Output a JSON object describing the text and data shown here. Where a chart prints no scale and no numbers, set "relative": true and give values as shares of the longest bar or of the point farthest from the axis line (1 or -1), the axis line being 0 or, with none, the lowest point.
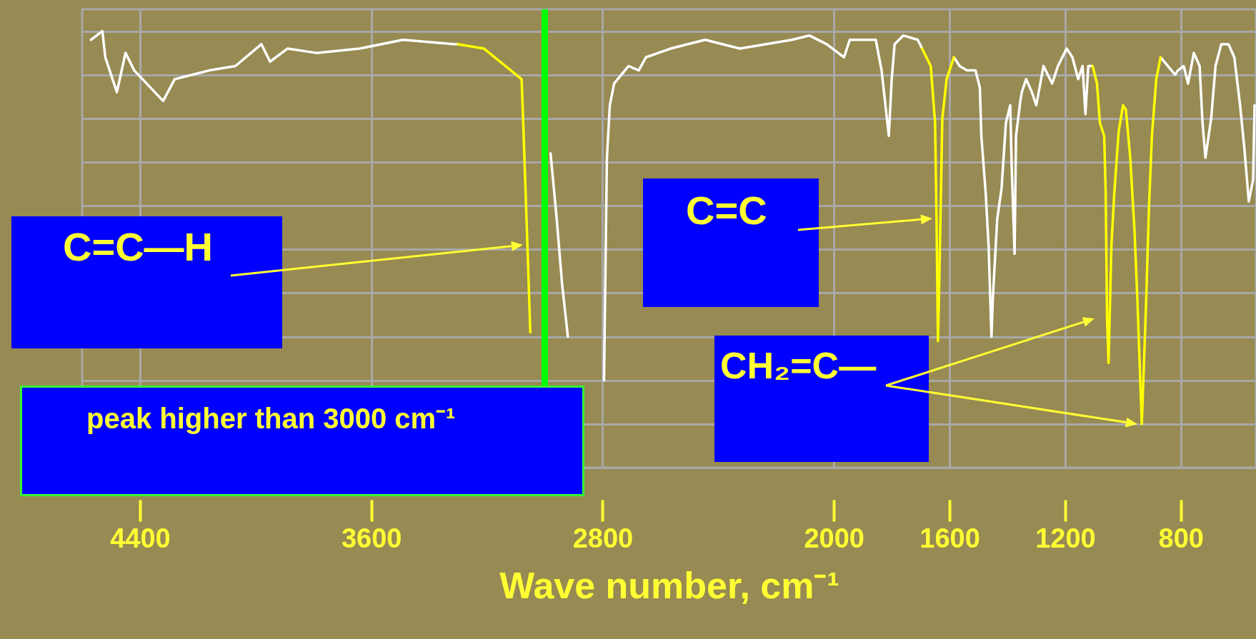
{
  "chart_data": {
    "type": "line",
    "xlabel": "Wave number, cm⁻¹",
    "relative": true,
    "xlim": [
      4600,
      540
    ],
    "xticks": [
      4400,
      3600,
      2800,
      2000,
      1600,
      1200,
      800
    ],
    "grid": true,
    "series": [
      {
        "color": "#ffffff",
        "x": [
          4570,
          4530,
          4520,
          4480,
          4450,
          4420,
          4320,
          4280,
          4220,
          4160,
          4070,
          3980,
          3950,
          3890,
          3790,
          3640,
          3490,
          3310,
          3300,
          3100,
          2980,
          2960,
          2940,
          2920,
          2850,
          2795,
          2785,
          2775,
          2760,
          2710,
          2675,
          2650,
          2565,
          2445,
          2325,
          2145,
          2085,
          2025,
          1965,
          1945,
          1855,
          1835,
          1820,
          1810,
          1800,
          1790,
          1760,
          1710,
          1695,
          1640,
          1585,
          1565,
          1540,
          1510,
          1495,
          1490,
          1475,
          1465,
          1455,
          1450,
          1435,
          1420,
          1405,
          1390,
          1385,
          1375,
          1370,
          1355,
          1350,
          1335,
          1315,
          1300,
          1275,
          1245,
          1225,
          1195,
          1175,
          1155,
          1140,
          1130,
          1120,
          1105,
          1000,
          870,
          845,
          820,
          810,
          790,
          775,
          755,
          735,
          725,
          715,
          695,
          680,
          660,
          635,
          615,
          595,
          580,
          565,
          550,
          545
        ],
        "values": [
          0.98,
          1.0,
          0.94,
          0.86,
          0.95,
          0.91,
          0.84,
          0.89,
          0.9,
          0.91,
          0.92,
          0.97,
          0.93,
          0.96,
          0.95,
          0.96,
          0.98,
          0.97,
          0.97,
          null,
          0.72,
          0.58,
          0.42,
          0.3,
          null,
          0.2,
          0.71,
          0.83,
          0.88,
          0.92,
          0.91,
          0.94,
          0.96,
          0.98,
          0.96,
          0.98,
          0.99,
          0.97,
          0.94,
          0.98,
          0.98,
          0.91,
          0.82,
          0.76,
          0.89,
          0.97,
          0.99,
          0.98,
          0.96,
          null,
          0.94,
          0.92,
          0.91,
          0.91,
          0.87,
          0.76,
          0.63,
          0.51,
          0.3,
          0.39,
          0.57,
          0.64,
          0.79,
          0.83,
          0.69,
          0.49,
          0.76,
          0.84,
          0.86,
          0.89,
          0.86,
          0.83,
          0.92,
          0.88,
          0.92,
          0.96,
          0.94,
          0.89,
          0.92,
          0.81,
          0.92,
          0.92,
          null,
          0.94,
          0.92,
          0.9,
          0.91,
          0.92,
          0.88,
          0.95,
          0.92,
          0.79,
          0.71,
          0.8,
          0.92,
          0.97,
          0.97,
          0.94,
          0.83,
          0.73,
          0.61,
          0.66,
          0.83
        ]
      },
      {
        "color": "#ffff00",
        "x": [
          3300,
          3210,
          3080,
          3075,
          3060,
          3050
        ],
        "values": [
          0.97,
          0.96,
          0.89,
          0.8,
          0.51,
          0.31
        ]
      },
      {
        "color": "#ffff00",
        "x": [
          1695,
          1665,
          1650,
          1645,
          1640,
          1635,
          1625,
          1610,
          1585
        ],
        "values": [
          0.96,
          0.92,
          0.79,
          0.57,
          0.29,
          0.44,
          0.8,
          0.89,
          0.94
        ]
      },
      {
        "color": "#ffff00",
        "x": [
          1105,
          1090,
          1080,
          1065,
          1060,
          1055,
          1050,
          1040,
          1030,
          1015,
          1000,
          990,
          975,
          960,
          950,
          935,
          920,
          910,
          900,
          885,
          870
        ],
        "values": [
          0.92,
          0.88,
          0.79,
          0.76,
          0.63,
          0.34,
          0.24,
          0.51,
          0.63,
          0.77,
          0.83,
          0.82,
          0.71,
          0.54,
          0.38,
          0.1,
          0.38,
          0.6,
          0.76,
          0.89,
          0.94
        ]
      }
    ],
    "ref_lines": [
      {
        "axis": "x",
        "value": 3000,
        "color": "#00ff00"
      }
    ],
    "annotations": [
      "C=C—H",
      "C=C",
      "CH₂=C—",
      "peak higher than 3000 cm⁻¹"
    ]
  }
}
